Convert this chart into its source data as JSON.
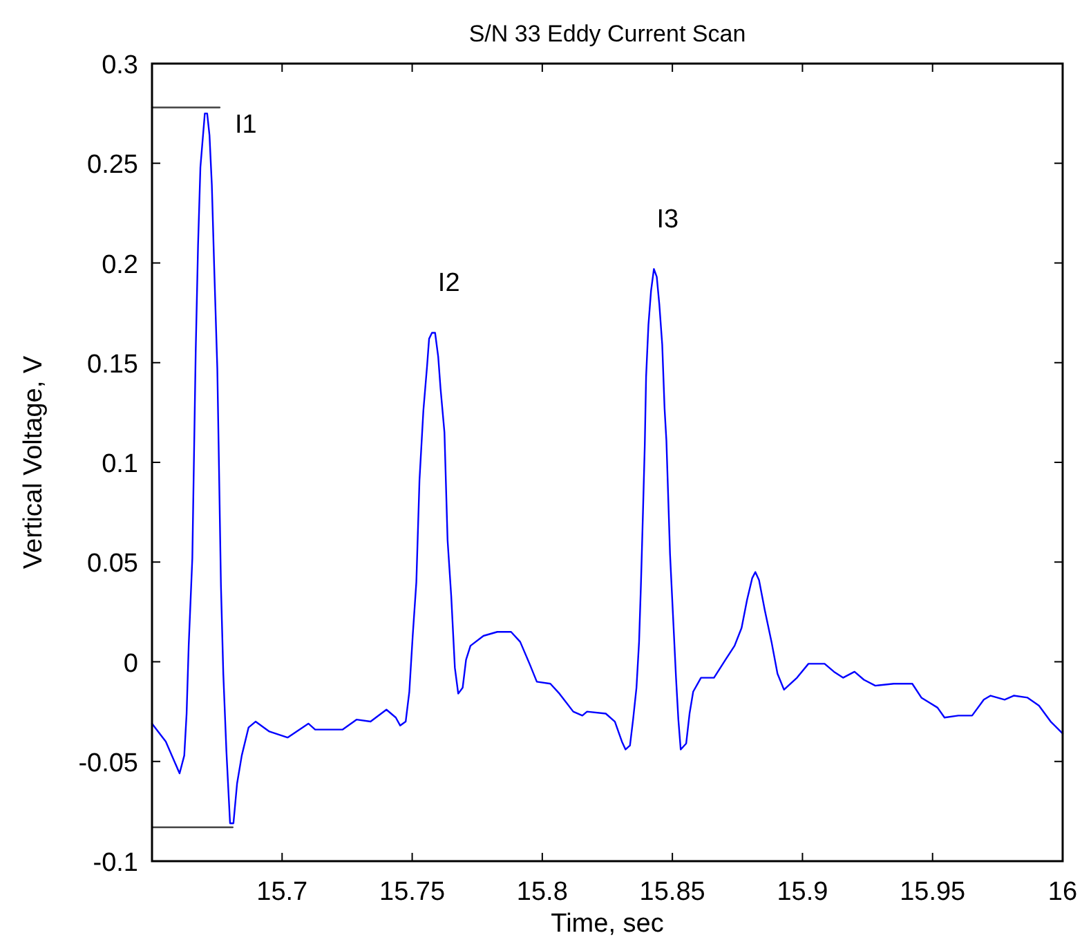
{
  "chart_data": {
    "type": "line",
    "title": "S/N 33 Eddy Current Scan",
    "xlabel": "Time, sec",
    "ylabel": "Vertical Voltage, V",
    "xlim": [
      15.65,
      16
    ],
    "xticks": [
      15.7,
      15.75,
      15.8,
      15.85,
      15.9,
      15.95,
      16
    ],
    "ylim": [
      -0.1,
      0.3
    ],
    "yticks": [
      -0.1,
      -0.05,
      0,
      0.05,
      0.1,
      0.15,
      0.2,
      0.25,
      0.3
    ],
    "grid": false,
    "marker": "none",
    "line_style": "solid",
    "annotations": [
      {
        "text": "I1",
        "x": 15.6712,
        "y": 0.275
      },
      {
        "text": "I2",
        "x": 15.7588,
        "y": 0.165
      },
      {
        "text": "I3",
        "x": 15.8429,
        "y": 0.197
      }
    ],
    "series": [
      {
        "color": "#0000ff",
        "x": [
          15.65,
          15.6553,
          15.6606,
          15.6624,
          15.6633,
          15.6641,
          15.6655,
          15.6668,
          15.6677,
          15.6686,
          15.6703,
          15.6712,
          15.6721,
          15.673,
          15.6739,
          15.6751,
          15.6756,
          15.6765,
          15.6774,
          15.6786,
          15.68,
          15.6813,
          15.6827,
          15.6845,
          15.6871,
          15.6898,
          15.6951,
          15.7021,
          15.7101,
          15.7127,
          15.7233,
          15.7286,
          15.734,
          15.7401,
          15.7437,
          15.7454,
          15.7475,
          15.7489,
          15.7502,
          15.7516,
          15.7528,
          15.7543,
          15.7557,
          15.7565,
          15.7576,
          15.7588,
          15.76,
          15.7609,
          15.7624,
          15.7636,
          15.765,
          15.7664,
          15.7677,
          15.7694,
          15.7707,
          15.7724,
          15.7774,
          15.7827,
          15.788,
          15.7915,
          15.7951,
          15.7979,
          15.8031,
          15.8066,
          15.8119,
          15.8154,
          15.8172,
          15.8244,
          15.8279,
          15.8306,
          15.832,
          15.8337,
          15.8349,
          15.8362,
          15.8372,
          15.8379,
          15.8387,
          15.8394,
          15.8399,
          15.8408,
          15.8418,
          15.8429,
          15.844,
          15.845,
          15.8461,
          15.847,
          15.8477,
          15.8491,
          15.8504,
          15.8514,
          15.8523,
          15.8532,
          15.8553,
          15.8566,
          15.858,
          15.861,
          15.866,
          15.8704,
          15.8739,
          15.8766,
          15.8787,
          15.8807,
          15.8819,
          15.8833,
          15.8855,
          15.8881,
          15.8904,
          15.8929,
          15.8979,
          15.9023,
          15.9085,
          15.9121,
          15.9156,
          15.92,
          15.9236,
          15.928,
          15.9351,
          15.9422,
          15.9457,
          15.9519,
          15.9546,
          15.9599,
          15.9652,
          15.9697,
          15.9723,
          15.9777,
          15.9812,
          15.9865,
          15.9909,
          15.9954,
          16.0
        ],
        "values": [
          -0.031,
          -0.04,
          -0.056,
          -0.047,
          -0.026,
          0.008,
          0.052,
          0.156,
          0.209,
          0.248,
          0.275,
          0.275,
          0.264,
          0.239,
          0.198,
          0.147,
          0.109,
          0.038,
          -0.006,
          -0.045,
          -0.081,
          -0.081,
          -0.061,
          -0.047,
          -0.033,
          -0.03,
          -0.035,
          -0.038,
          -0.031,
          -0.034,
          -0.034,
          -0.029,
          -0.03,
          -0.024,
          -0.028,
          -0.032,
          -0.03,
          -0.015,
          0.013,
          0.04,
          0.091,
          0.126,
          0.148,
          0.162,
          0.165,
          0.165,
          0.153,
          0.137,
          0.115,
          0.061,
          0.033,
          -0.003,
          -0.016,
          -0.013,
          0.001,
          0.008,
          0.013,
          0.015,
          0.015,
          0.01,
          -0.001,
          -0.01,
          -0.011,
          -0.016,
          -0.025,
          -0.027,
          -0.025,
          -0.026,
          -0.03,
          -0.04,
          -0.044,
          -0.042,
          -0.029,
          -0.013,
          0.01,
          0.038,
          0.075,
          0.109,
          0.143,
          0.169,
          0.186,
          0.197,
          0.193,
          0.179,
          0.159,
          0.127,
          0.111,
          0.054,
          0.019,
          -0.008,
          -0.029,
          -0.044,
          -0.041,
          -0.026,
          -0.015,
          -0.008,
          -0.008,
          0.001,
          0.008,
          0.017,
          0.031,
          0.042,
          0.045,
          0.041,
          0.026,
          0.01,
          -0.006,
          -0.014,
          -0.008,
          -0.001,
          -0.001,
          -0.005,
          -0.008,
          -0.005,
          -0.009,
          -0.012,
          -0.011,
          -0.011,
          -0.018,
          -0.023,
          -0.028,
          -0.027,
          -0.027,
          -0.019,
          -0.017,
          -0.019,
          -0.017,
          -0.018,
          -0.022,
          -0.03,
          -0.036
        ]
      },
      {
        "color": "#404040",
        "x": [
          15.65,
          15.676
        ],
        "values": [
          0.278,
          0.278
        ]
      },
      {
        "color": "#404040",
        "x": [
          15.65,
          15.681
        ],
        "values": [
          -0.083,
          -0.083
        ]
      }
    ]
  }
}
